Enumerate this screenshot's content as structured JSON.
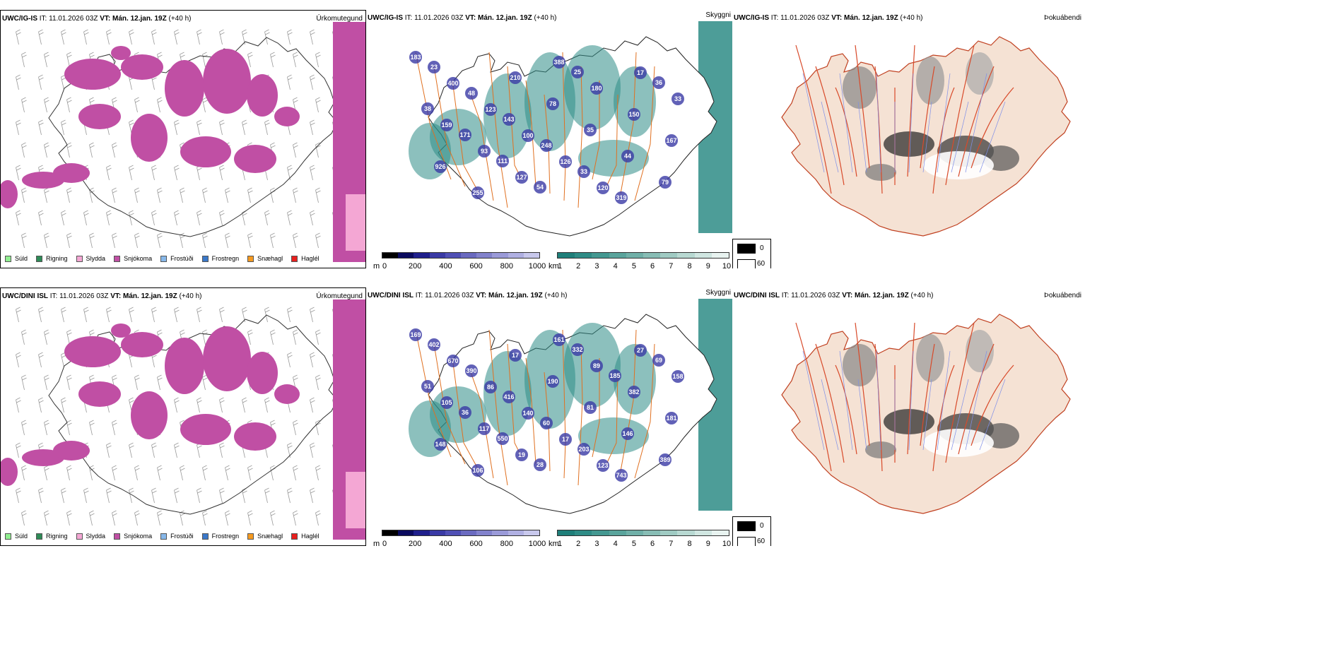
{
  "rows": [
    {
      "model": "UWC/IG-IS",
      "it_label": "IT:",
      "it_value": "11.01.2026 03Z",
      "vt_label": "VT:",
      "vt_value": "Mán. 12.jan. 19Z",
      "lead": "(+40 h)",
      "precip_title": "Úrkomutegund",
      "cloud_title": "Skyggni",
      "fog_title": "Þokuábendi",
      "labels": [
        "183",
        "400",
        "123",
        "100",
        "126",
        "120",
        "17",
        "33",
        "159",
        "93",
        "127",
        "388",
        "180",
        "150",
        "167",
        "926",
        "255",
        "210",
        "78",
        "35",
        "44",
        "79",
        "23",
        "48",
        "143",
        "248",
        "33",
        "319",
        "36",
        "38",
        "171",
        "111",
        "54",
        "25"
      ]
    },
    {
      "model": "UWC/DINI ISL",
      "it_label": "IT:",
      "it_value": "11.01.2026 03Z",
      "vt_label": "VT:",
      "vt_value": "Mán. 12.jan. 19Z",
      "lead": "(+40 h)",
      "precip_title": "Úrkomutegund",
      "cloud_title": "Skyggni",
      "fog_title": "Þokuábendi",
      "labels": [
        "169",
        "670",
        "86",
        "140",
        "17",
        "123",
        "27",
        "158",
        "105",
        "117",
        "19",
        "161",
        "89",
        "382",
        "181",
        "148",
        "106",
        "17",
        "190",
        "81",
        "146",
        "389",
        "402",
        "390",
        "416",
        "60",
        "203",
        "743",
        "69",
        "51",
        "36",
        "550",
        "28",
        "332",
        "185"
      ]
    }
  ],
  "precip_legend": [
    {
      "label": "Súld",
      "color": "#90ee90"
    },
    {
      "label": "Rigning",
      "color": "#2e8b57"
    },
    {
      "label": "Slydda",
      "color": "#f4a7d4"
    },
    {
      "label": "Snjókoma",
      "color": "#c04fa4"
    },
    {
      "label": "Frostúði",
      "color": "#87b8ea"
    },
    {
      "label": "Frostregn",
      "color": "#3a78c9"
    },
    {
      "label": "Snæhagl",
      "color": "#f59a20"
    },
    {
      "label": "Haglél",
      "color": "#e8201e"
    }
  ],
  "ceiling_bar": {
    "unit": "m",
    "ticks": [
      "0",
      "200",
      "400",
      "600",
      "800",
      "1000"
    ],
    "colors": [
      "#000000",
      "#0a0a5e",
      "#1f1f8c",
      "#3a3aa5",
      "#5050b5",
      "#6a6ac0",
      "#8282cc",
      "#9a9ad8",
      "#b0b0e2",
      "#c8c8ec"
    ]
  },
  "visibility_bar": {
    "unit": "km",
    "ticks": [
      "1",
      "2",
      "3",
      "4",
      "5",
      "6",
      "7",
      "8",
      "9",
      "10"
    ],
    "colors": [
      "#1f7f7a",
      "#2f8c86",
      "#449891",
      "#5aa49c",
      "#70b0a8",
      "#88bdb5",
      "#a0cbc3",
      "#b8d9d2",
      "#d0e6e1",
      "#e8f3f0"
    ]
  },
  "fog_key": {
    "high": "0",
    "low": "60"
  },
  "colors": {
    "snow": "#c04fa4",
    "sleet": "#f4a7d4",
    "rain": "#2e8b57",
    "teal": "#2e8c86",
    "roads": "#e07020",
    "land": "#f5e2d4"
  }
}
